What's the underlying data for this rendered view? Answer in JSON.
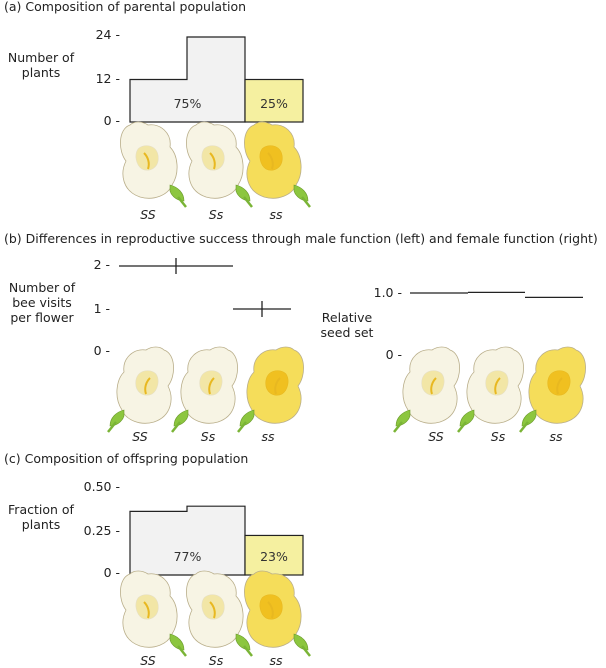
{
  "panel_a": {
    "title": "(a) Composition of parental population",
    "ylabel": "Number of plants",
    "ticks": [
      "24 -",
      "12 -",
      "0 -"
    ],
    "ylim": [
      0,
      24
    ],
    "bars": [
      {
        "genotypes": "SS + Ss",
        "step_values": [
          12,
          24
        ],
        "pct": "75%",
        "color": "#f2f2f2"
      },
      {
        "genotypes": "ss",
        "value": 12,
        "pct": "25%",
        "color": "#f5f0a0"
      }
    ],
    "genotypes": [
      "SS",
      "Ss",
      "ss"
    ]
  },
  "panel_b": {
    "title": "(b) Differences in reproductive success through male function (left) and female function (right)",
    "left": {
      "ylabel": "Number of bee visits per flower",
      "ticks": [
        "2 -",
        "1 -",
        "0 -"
      ],
      "ylim": [
        0,
        2
      ],
      "values": [
        {
          "genotypes": "SS + Ss",
          "value": 2
        },
        {
          "genotypes": "ss",
          "value": 1
        }
      ],
      "genotypes": [
        "SS",
        "Ss",
        "ss"
      ]
    },
    "right": {
      "ylabel": "Relative seed set",
      "ticks": [
        "1.0 -",
        "0 -"
      ],
      "ylim": [
        0,
        1.0
      ],
      "values": [
        {
          "genotype": "SS",
          "value": 1.0
        },
        {
          "genotype": "Ss",
          "value": 1.01
        },
        {
          "genotype": "ss",
          "value": 0.93
        }
      ],
      "genotypes": [
        "SS",
        "Ss",
        "ss"
      ]
    }
  },
  "panel_c": {
    "title": "(c) Composition of offspring population",
    "ylabel": "Fraction of plants",
    "ticks": [
      "0.50 -",
      "0.25 -",
      "0 -"
    ],
    "ylim": [
      0,
      0.5
    ],
    "bars": [
      {
        "genotypes": "SS + Ss",
        "step_values": [
          0.37,
          0.4
        ],
        "pct": "77%",
        "color": "#f2f2f2"
      },
      {
        "genotypes": "ss",
        "value": 0.23,
        "pct": "23%",
        "color": "#f5f0a0"
      }
    ],
    "genotypes": [
      "SS",
      "Ss",
      "ss"
    ]
  },
  "colors": {
    "white_bar": "#f2f2f2",
    "yellow_bar": "#f5f0a0",
    "flower_white": "#f7f4e4",
    "flower_yellow": "#f5dd5a",
    "leaf_green": "#8cc63f"
  }
}
